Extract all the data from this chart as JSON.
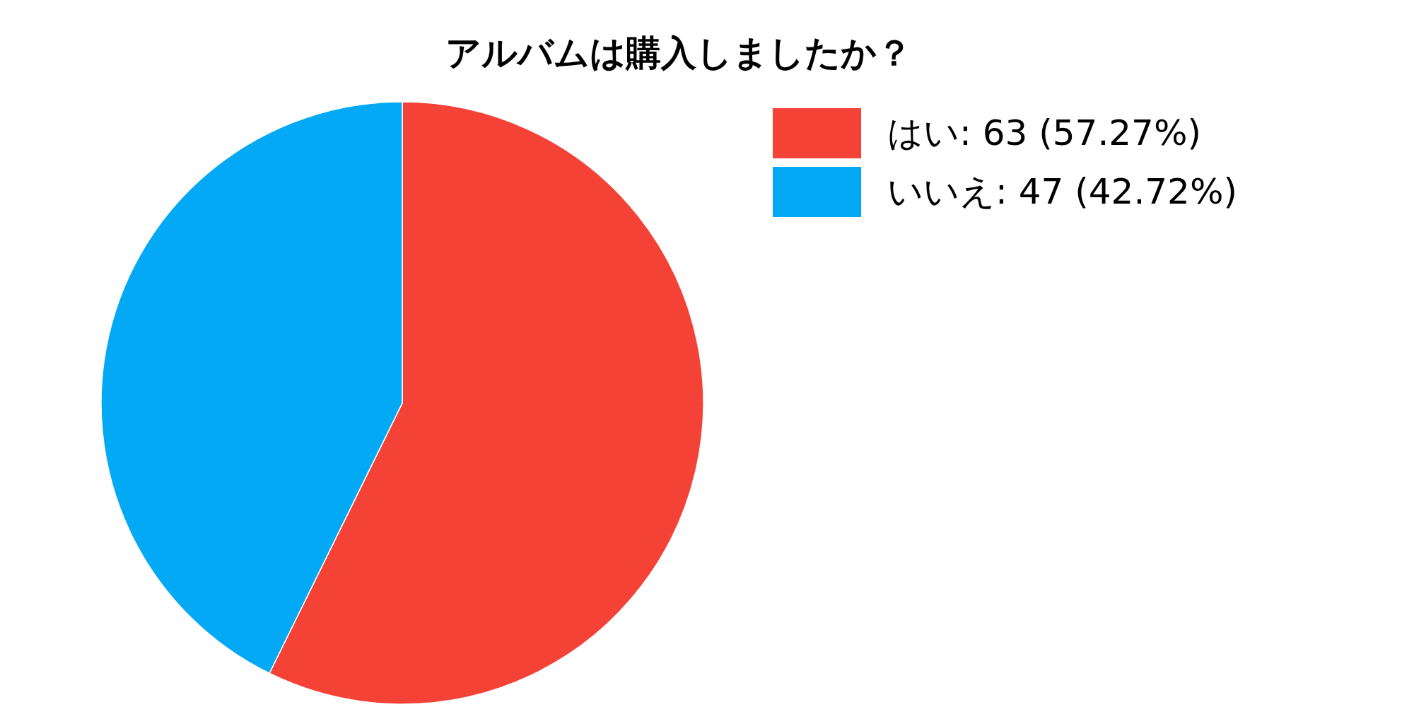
{
  "chart_data": {
    "type": "pie",
    "title": "アルバムは購入しましたか？",
    "categories": [
      "はい",
      "いいえ"
    ],
    "values": [
      63,
      47
    ],
    "colors": [
      "#f44336",
      "#03a9f4"
    ],
    "value_labels": [
      "63 (57.27%)",
      "47 (42.72%)"
    ],
    "legend": "top right"
  }
}
